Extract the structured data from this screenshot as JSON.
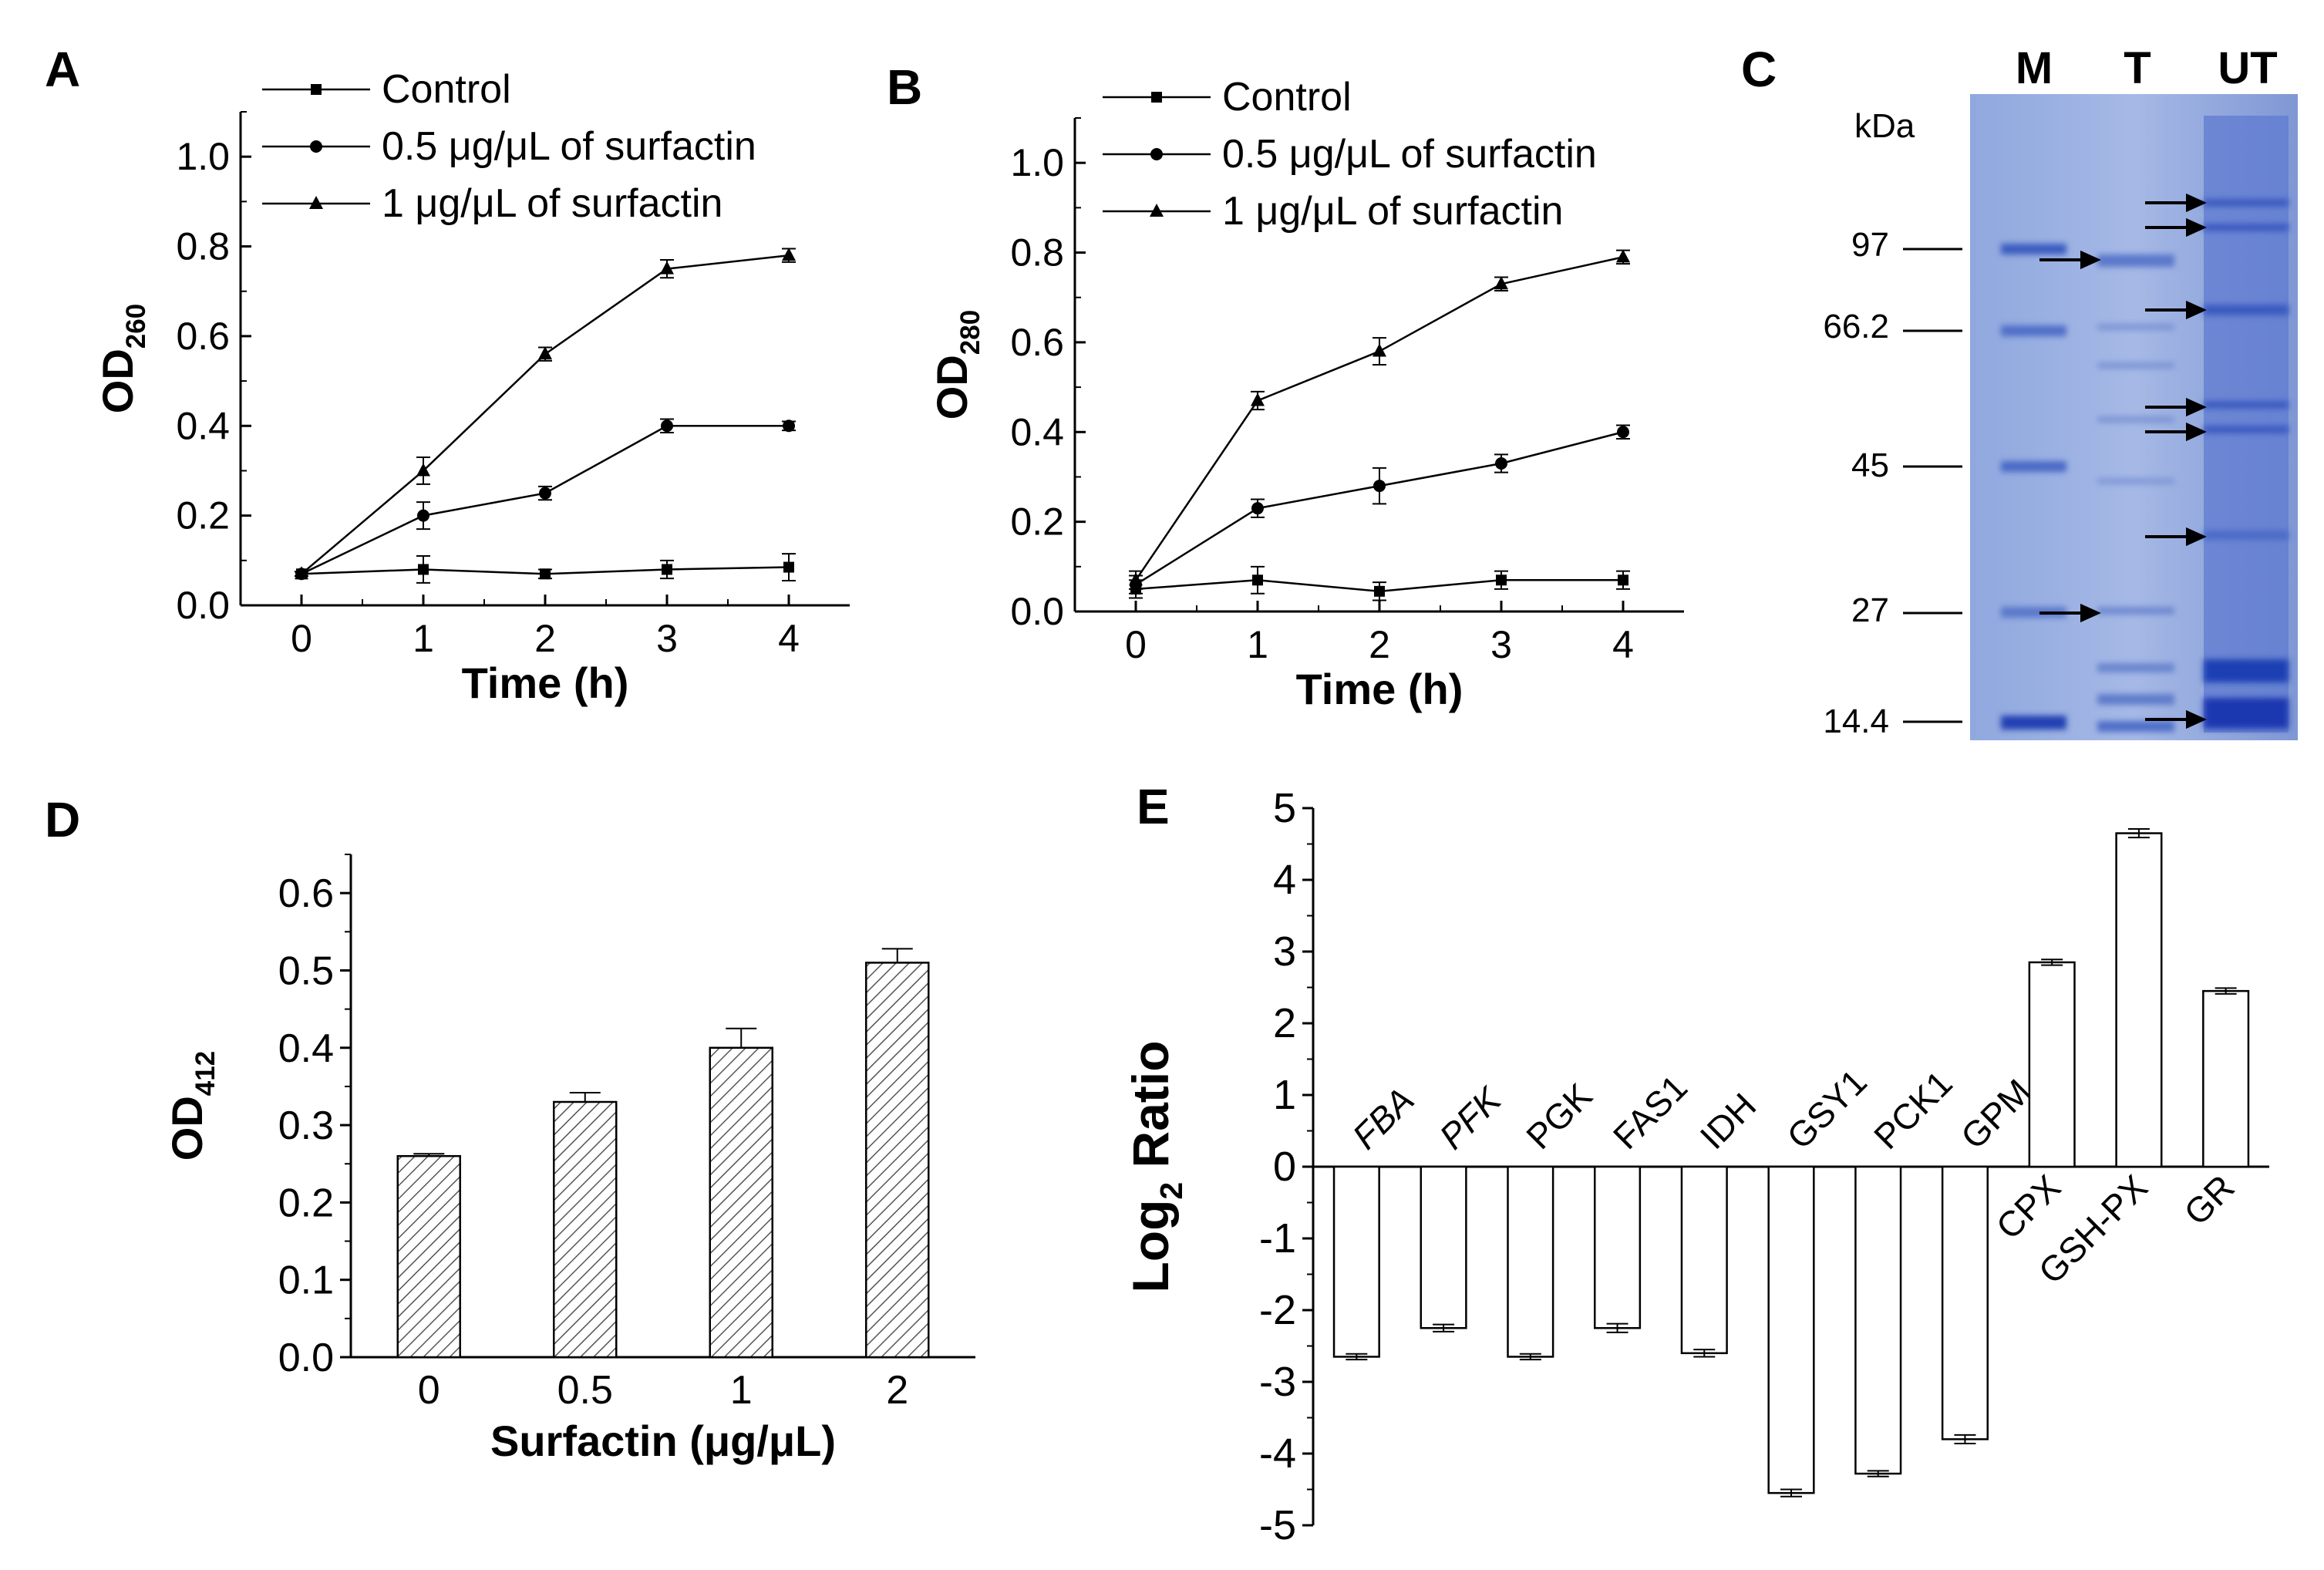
{
  "panels": {
    "A": "A",
    "B": "B",
    "C": "C",
    "D": "D",
    "E": "E"
  },
  "chart_data": [
    {
      "panel": "A",
      "type": "line",
      "x": [
        0,
        1,
        2,
        3,
        4
      ],
      "series": [
        {
          "name": "Control",
          "marker": "square",
          "values": [
            0.07,
            0.08,
            0.07,
            0.08,
            0.085
          ],
          "errors": [
            0.005,
            0.03,
            0.01,
            0.02,
            0.03
          ]
        },
        {
          "name": "0.5 μg/μL of surfactin",
          "marker": "circle",
          "values": [
            0.07,
            0.2,
            0.25,
            0.4,
            0.4
          ],
          "errors": [
            0.005,
            0.03,
            0.015,
            0.015,
            0.01
          ]
        },
        {
          "name": "1 μg/μL of surfactin",
          "marker": "triangle",
          "values": [
            0.07,
            0.3,
            0.56,
            0.75,
            0.78
          ],
          "errors": [
            0.005,
            0.03,
            0.015,
            0.02,
            0.015
          ]
        }
      ],
      "xlabel": "Time (h)",
      "ylabel_main": "OD",
      "ylabel_sub": "260",
      "xticks": [
        "0",
        "1",
        "2",
        "3",
        "4"
      ],
      "yticks": [
        "0.0",
        "0.2",
        "0.4",
        "0.6",
        "0.8",
        "1.0"
      ],
      "xlim": [
        -0.5,
        4.5
      ],
      "ylim": [
        0,
        1.1
      ],
      "legend_position": "top-left"
    },
    {
      "panel": "B",
      "type": "line",
      "x": [
        0,
        1,
        2,
        3,
        4
      ],
      "series": [
        {
          "name": "Control",
          "marker": "square",
          "values": [
            0.05,
            0.07,
            0.045,
            0.07,
            0.07
          ],
          "errors": [
            0.02,
            0.03,
            0.02,
            0.02,
            0.02
          ]
        },
        {
          "name": "0.5 μg/μL of surfactin",
          "marker": "circle",
          "values": [
            0.06,
            0.23,
            0.28,
            0.33,
            0.4
          ],
          "errors": [
            0.02,
            0.02,
            0.04,
            0.02,
            0.015
          ]
        },
        {
          "name": "1 μg/μL of surfactin",
          "marker": "triangle",
          "values": [
            0.07,
            0.47,
            0.58,
            0.73,
            0.79
          ],
          "errors": [
            0.02,
            0.02,
            0.03,
            0.015,
            0.015
          ]
        }
      ],
      "xlabel": "Time (h)",
      "ylabel_main": "OD",
      "ylabel_sub": "280",
      "xticks": [
        "0",
        "1",
        "2",
        "3",
        "4"
      ],
      "yticks": [
        "0.0",
        "0.2",
        "0.4",
        "0.6",
        "0.8",
        "1.0"
      ],
      "xlim": [
        -0.5,
        4.5
      ],
      "ylim": [
        0,
        1.1
      ],
      "legend_position": "top-left"
    },
    {
      "panel": "D",
      "type": "bar",
      "categories": [
        "0",
        "0.5",
        "1",
        "2"
      ],
      "values": [
        0.26,
        0.33,
        0.4,
        0.51
      ],
      "errors": [
        0.003,
        0.012,
        0.025,
        0.018
      ],
      "xlabel": "Surfactin (μg/μL)",
      "ylabel_main": "OD",
      "ylabel_sub": "412",
      "yticks": [
        "0.0",
        "0.1",
        "0.2",
        "0.3",
        "0.4",
        "0.5",
        "0.6"
      ],
      "ylim": [
        0,
        0.65
      ],
      "fill": "diagonal-hatch"
    },
    {
      "panel": "E",
      "type": "bar",
      "categories": [
        "FBA",
        "PFK",
        "PGK",
        "FAS1",
        "IDH",
        "GSY1",
        "PCK1",
        "GPM",
        "CPX",
        "GSH-PX",
        "GR"
      ],
      "italic_categories": [
        "FBA",
        "PFK"
      ],
      "values": [
        -2.65,
        -2.25,
        -2.65,
        -2.25,
        -2.6,
        -4.55,
        -4.28,
        -3.8,
        2.85,
        4.65,
        2.45
      ],
      "errors": [
        0.04,
        0.05,
        0.04,
        0.06,
        0.05,
        0.05,
        0.04,
        0.06,
        0.04,
        0.06,
        0.04
      ],
      "ylabel_main": "Log",
      "ylabel_sub": "2",
      "ylabel_tail": " Ratio",
      "yticks": [
        "-5",
        "-4",
        "-3",
        "-2",
        "-1",
        "0",
        "1",
        "2",
        "3",
        "4",
        "5"
      ],
      "ylim": [
        -5,
        5
      ],
      "fill": "white"
    },
    {
      "panel": "C",
      "type": "gel",
      "unit_label": "kDa",
      "lanes": [
        "M",
        "T",
        "UT"
      ],
      "markers_kda": [
        "97",
        "66.2",
        "45",
        "27",
        "14.4"
      ],
      "colors": {
        "gel": "#7f9bd6",
        "band": "#2f4fb8"
      }
    }
  ]
}
